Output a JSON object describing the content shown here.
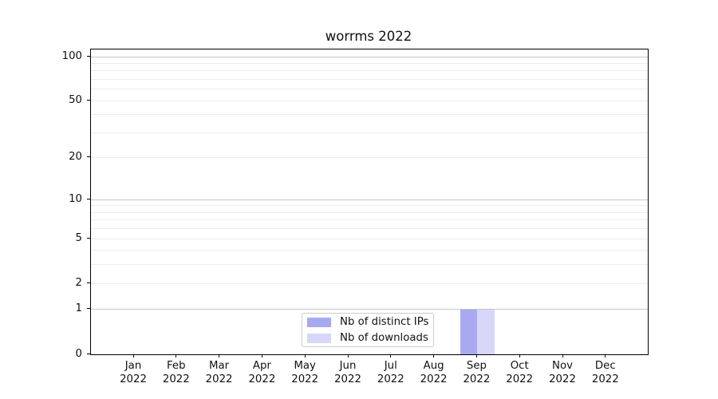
{
  "figure": {
    "title": "worrms 2022",
    "background": "#ffffff"
  },
  "legend": {
    "items": [
      {
        "label": "Nb of distinct IPs",
        "color": "#a9a9f1"
      },
      {
        "label": "Nb of downloads",
        "color": "#d7d7f9"
      }
    ],
    "position": "lower center"
  },
  "chart_data": {
    "type": "bar",
    "title": "worrms 2022",
    "categories": [
      "Jan 2022",
      "Feb 2022",
      "Mar 2022",
      "Apr 2022",
      "May 2022",
      "Jun 2022",
      "Jul 2022",
      "Aug 2022",
      "Sep 2022",
      "Oct 2022",
      "Nov 2022",
      "Dec 2022"
    ],
    "series": [
      {
        "name": "Nb of distinct IPs",
        "color": "#a9a9f1",
        "values": [
          0,
          0,
          0,
          0,
          0,
          0,
          0,
          0,
          1,
          0,
          0,
          0
        ]
      },
      {
        "name": "Nb of downloads",
        "color": "#d7d7f9",
        "values": [
          0,
          0,
          0,
          0,
          0,
          0,
          0,
          0,
          1,
          0,
          0,
          0
        ]
      }
    ],
    "xlabel": "",
    "ylabel": "",
    "yscale": "log1p",
    "ylim": [
      0,
      112
    ],
    "yticks_major": [
      0,
      1,
      2,
      5,
      10,
      20,
      50,
      100
    ],
    "yticks_minor": [
      3,
      4,
      6,
      7,
      8,
      9,
      30,
      40,
      60,
      70,
      80,
      90
    ],
    "grid": true,
    "grid_emphasized_values": [
      1,
      10,
      100
    ],
    "grid_major_color": "#c7c7c7",
    "grid_minor_color": "#ececec",
    "legend_position": "lower center"
  }
}
